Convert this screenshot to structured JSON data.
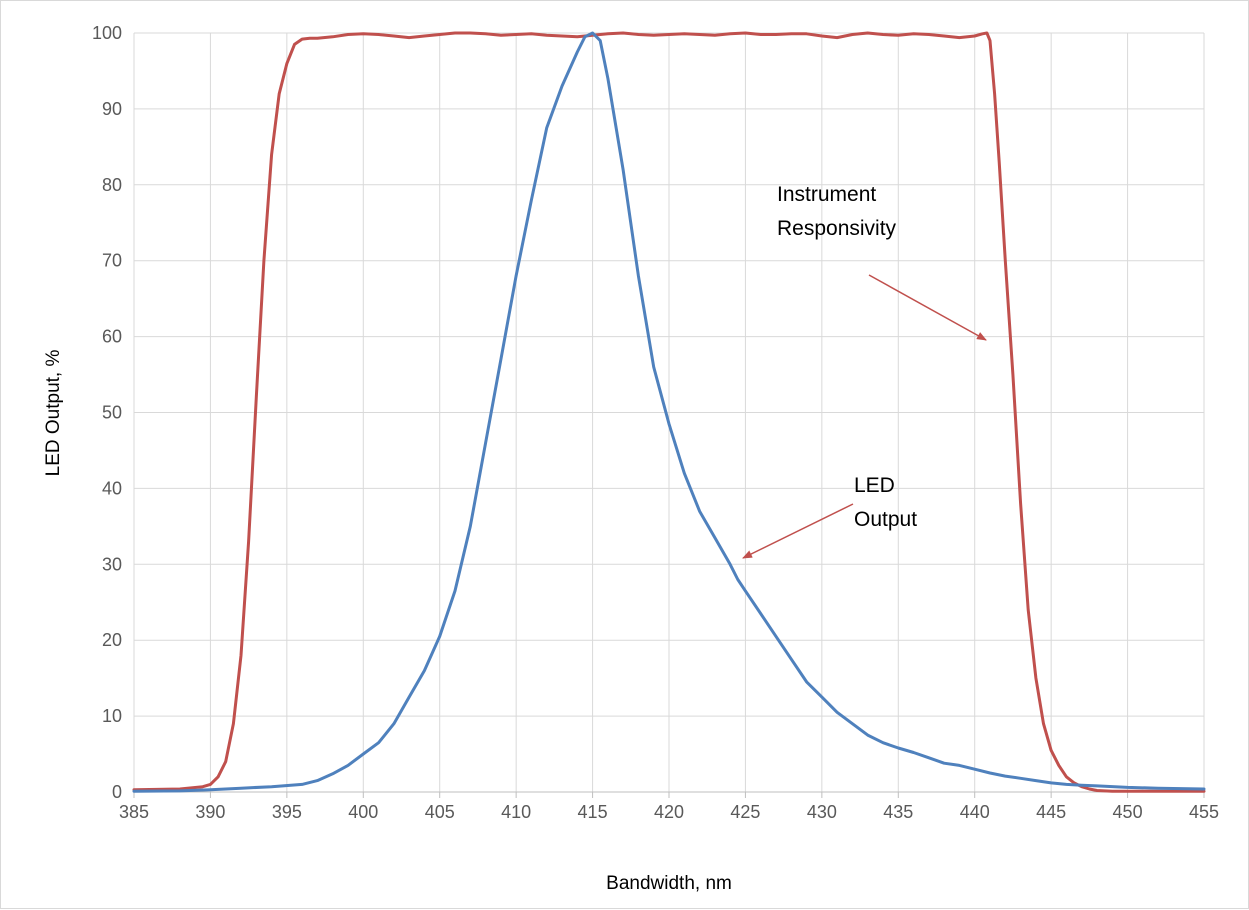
{
  "chart_data": {
    "type": "line",
    "title": "",
    "xlabel": "Bandwidth, nm",
    "ylabel": "LED Output, %",
    "xlim": [
      385,
      455
    ],
    "ylim": [
      0,
      100
    ],
    "x_ticks": [
      "385",
      "390",
      "395",
      "400",
      "405",
      "410",
      "415",
      "420",
      "425",
      "430",
      "435",
      "440",
      "445",
      "450",
      "455"
    ],
    "y_ticks": [
      "0",
      "10",
      "20",
      "30",
      "40",
      "50",
      "60",
      "70",
      "80",
      "90",
      "100"
    ],
    "grid": true,
    "legend": "none",
    "series": [
      {
        "name": "Instrument Responsivity",
        "color": "#C0504D",
        "x": [
          385,
          388,
          389.5,
          390,
          390.5,
          391,
          391.5,
          392,
          392.5,
          393,
          393.5,
          394,
          394.5,
          395,
          395.5,
          396,
          396.5,
          397,
          398,
          399,
          400,
          401,
          402,
          403,
          404,
          405,
          406,
          407,
          408,
          409,
          410,
          411,
          412,
          413,
          414,
          415,
          416,
          417,
          418,
          419,
          420,
          421,
          422,
          423,
          424,
          425,
          426,
          427,
          428,
          429,
          430,
          431,
          432,
          433,
          434,
          435,
          436,
          437,
          438,
          439,
          440,
          440.5,
          440.8,
          441,
          441.3,
          441.6,
          442,
          442.5,
          443,
          443.5,
          444,
          444.5,
          445,
          445.5,
          446,
          446.5,
          447,
          447.5,
          448,
          449,
          450,
          452,
          455
        ],
        "y": [
          0.3,
          0.4,
          0.7,
          1.0,
          2.0,
          4.0,
          9.0,
          18.0,
          33.0,
          52.0,
          70.0,
          84.0,
          92.0,
          96.0,
          98.5,
          99.2,
          99.3,
          99.3,
          99.5,
          99.8,
          99.9,
          99.8,
          99.6,
          99.4,
          99.6,
          99.8,
          100.0,
          100.0,
          99.9,
          99.7,
          99.8,
          99.9,
          99.7,
          99.6,
          99.5,
          99.7,
          99.9,
          100.0,
          99.8,
          99.7,
          99.8,
          99.9,
          99.8,
          99.7,
          99.9,
          100.0,
          99.8,
          99.8,
          99.9,
          99.9,
          99.6,
          99.4,
          99.8,
          100.0,
          99.8,
          99.7,
          99.9,
          99.8,
          99.6,
          99.4,
          99.6,
          99.9,
          100.0,
          99.0,
          92.0,
          83.0,
          70.0,
          55.0,
          38.0,
          24.0,
          15.0,
          9.0,
          5.5,
          3.5,
          2.0,
          1.2,
          0.7,
          0.4,
          0.2,
          0.1,
          0.1,
          0.1,
          0.1
        ]
      },
      {
        "name": "LED Output",
        "color": "#4F81BD",
        "x": [
          385,
          388,
          390,
          392,
          394,
          396,
          397,
          398,
          399,
          400,
          401,
          402,
          403,
          404,
          405,
          406,
          407,
          408,
          409,
          410,
          411,
          412,
          413,
          414,
          414.5,
          415,
          415.5,
          416,
          417,
          418,
          419,
          420,
          421,
          422,
          423,
          424,
          424.5,
          425,
          426,
          427,
          428,
          429,
          430,
          431,
          432,
          433,
          434,
          435,
          436,
          437,
          438,
          439,
          440,
          441,
          442,
          443,
          444,
          445,
          446,
          447,
          448,
          450,
          452,
          455
        ],
        "y": [
          0.1,
          0.15,
          0.3,
          0.5,
          0.7,
          1.0,
          1.5,
          2.4,
          3.5,
          5.0,
          6.5,
          9.0,
          12.5,
          16.0,
          20.5,
          26.5,
          35.0,
          46.0,
          57.0,
          68.0,
          78.0,
          87.5,
          93.0,
          97.5,
          99.5,
          100.0,
          99.0,
          94.0,
          82.0,
          68.0,
          56.0,
          48.5,
          42.0,
          37.0,
          33.5,
          30.0,
          28.0,
          26.5,
          23.5,
          20.5,
          17.5,
          14.5,
          12.5,
          10.5,
          9.0,
          7.5,
          6.5,
          5.8,
          5.2,
          4.5,
          3.8,
          3.5,
          3.0,
          2.5,
          2.1,
          1.8,
          1.5,
          1.2,
          1.0,
          0.9,
          0.8,
          0.6,
          0.5,
          0.4
        ]
      }
    ],
    "annotations": [
      {
        "lines": [
          "Instrument",
          "Responsivity"
        ]
      },
      {
        "lines": [
          "LED",
          "Output"
        ]
      }
    ]
  }
}
